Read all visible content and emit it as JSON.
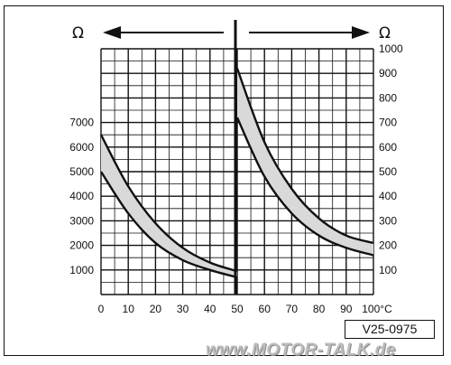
{
  "chart_data": {
    "type": "area",
    "x_ticks": [
      0,
      10,
      20,
      30,
      40,
      50,
      60,
      70,
      80,
      90,
      "100°C"
    ],
    "xlim": [
      0,
      100
    ],
    "left_axis": {
      "unit": "Ω",
      "ticks": [
        1000,
        2000,
        3000,
        4000,
        5000,
        6000,
        7000
      ],
      "ylim": [
        0,
        10000
      ]
    },
    "right_axis": {
      "unit": "Ω",
      "ticks": [
        100,
        200,
        300,
        400,
        500,
        600,
        700,
        800,
        900,
        1000
      ],
      "ylim": [
        0,
        1000
      ]
    },
    "grid": true,
    "series": [
      {
        "axis": "left",
        "x": [
          0,
          10,
          20,
          30,
          40,
          50
        ],
        "upper": [
          6500,
          4400,
          2900,
          1900,
          1300,
          950
        ],
        "lower": [
          5000,
          3300,
          2100,
          1400,
          1000,
          700
        ]
      },
      {
        "axis": "right",
        "x": [
          50,
          60,
          70,
          80,
          90,
          100
        ],
        "upper": [
          920,
          620,
          430,
          310,
          240,
          210
        ],
        "lower": [
          720,
          480,
          330,
          240,
          190,
          160
        ]
      }
    ],
    "band_color": "#d9d9d9"
  },
  "ref_code": "V25-0975",
  "watermark": "www.MOTOR-TALK.de"
}
